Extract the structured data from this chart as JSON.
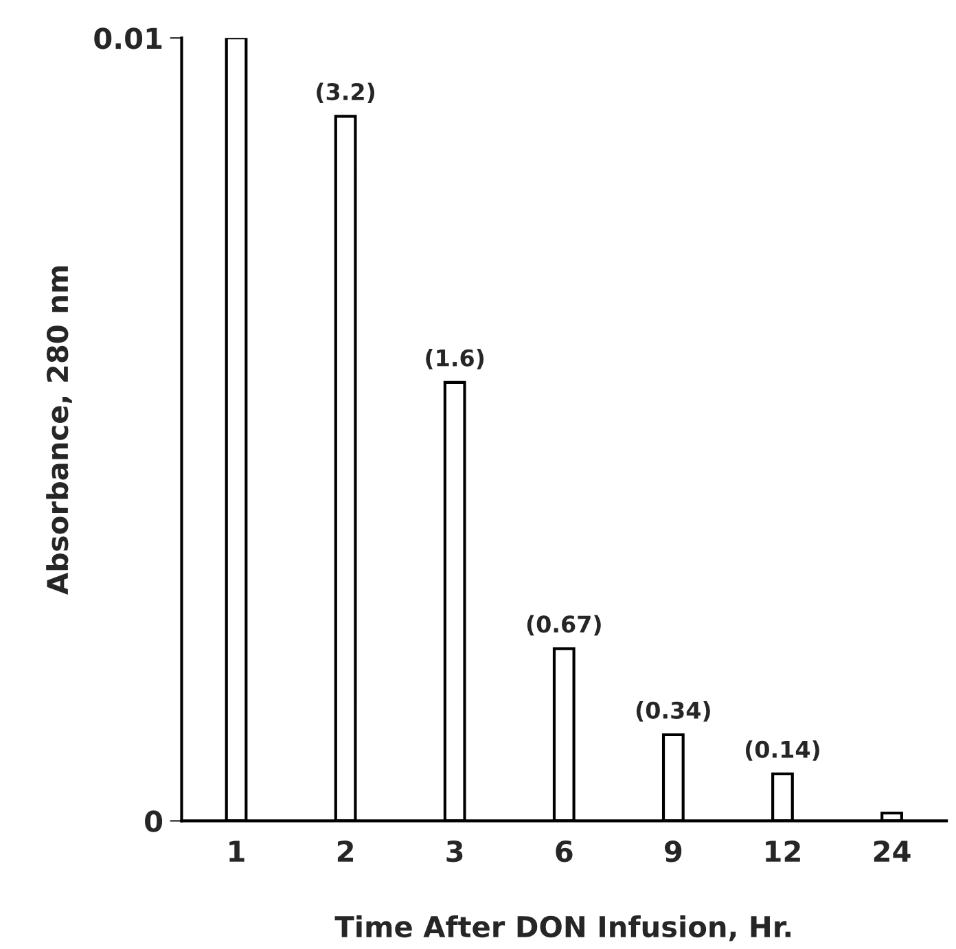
{
  "chart_data": {
    "type": "bar",
    "xlabel": "Time After DON Infusion, Hr.",
    "ylabel": "Absorbance, 280 nm",
    "categories": [
      "1",
      "2",
      "3",
      "6",
      "9",
      "12",
      "24"
    ],
    "values": [
      0.01,
      0.009,
      0.0056,
      0.0022,
      0.0011,
      0.0006,
      0.0001
    ],
    "annotations": [
      {
        "text": "(3.2)",
        "x": "2",
        "y": 0.009
      },
      {
        "text": "(1.6)",
        "x": "3",
        "y": 0.0056
      },
      {
        "text": "(0.67)",
        "x": "6",
        "y": 0.0022
      },
      {
        "text": "(0.34)",
        "x": "9",
        "y": 0.0011
      },
      {
        "text": "(0.14)",
        "x": "12",
        "y": 0.0006
      }
    ],
    "color": "#ffffff",
    "ylim": [
      0,
      0.01
    ],
    "yticks": [
      {
        "value": 0,
        "label": "0"
      },
      {
        "value": 0.01,
        "label": "0.01"
      }
    ],
    "grid": false,
    "legend": false
  }
}
